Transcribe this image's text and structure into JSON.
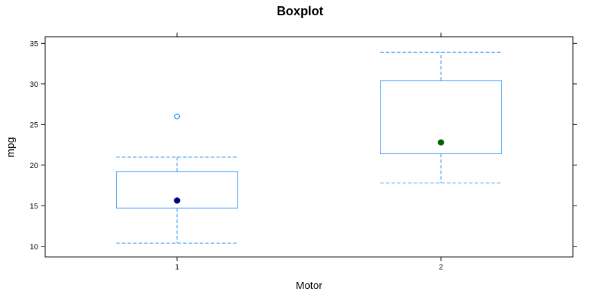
{
  "chart_data": {
    "type": "boxplot",
    "title": "Boxplot",
    "xlabel": "Motor",
    "ylabel": "mpg",
    "categories": [
      "1",
      "2"
    ],
    "ylim": [
      8.7,
      35.8
    ],
    "yticks": [
      10,
      15,
      20,
      25,
      30,
      35
    ],
    "boxes": [
      {
        "category": "1",
        "whisker_low": 10.4,
        "q1": 14.7,
        "median": 15.65,
        "q3": 19.2,
        "whisker_high": 21.0,
        "outliers": [
          26.0
        ],
        "median_color": "#00008b"
      },
      {
        "category": "2",
        "whisker_low": 17.8,
        "q1": 21.4,
        "median": 22.8,
        "q3": 30.4,
        "whisker_high": 33.9,
        "outliers": [],
        "median_color": "#006400"
      }
    ],
    "box_color": "#1e90ff",
    "grid": false
  }
}
